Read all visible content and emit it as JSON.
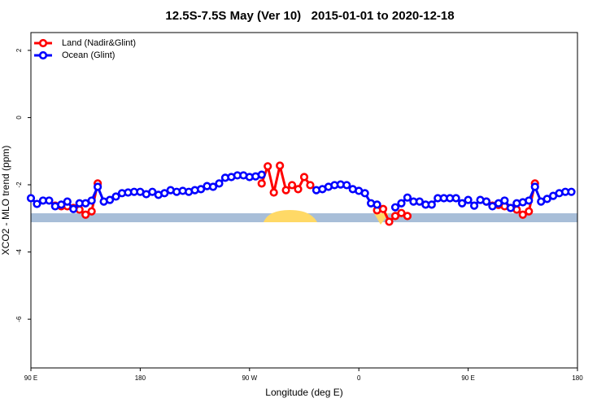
{
  "chart_data": {
    "type": "line",
    "title": "12.5S-7.5S May (Ver 10)   2015-01-01 to 2020-12-18",
    "x_label": "Longitude (deg E)",
    "y_label": "XCO2 - MLO trend (ppm)",
    "x": [
      90,
      95,
      100,
      105,
      110,
      115,
      120,
      125,
      130,
      135,
      140,
      145,
      150,
      155,
      160,
      165,
      170,
      175,
      180,
      185,
      190,
      195,
      200,
      205,
      210,
      215,
      220,
      225,
      230,
      235,
      240,
      245,
      250,
      255,
      260,
      265,
      270,
      275,
      280,
      285,
      290,
      295,
      300,
      305,
      310,
      315,
      320,
      325,
      330,
      335,
      340,
      345,
      350,
      355,
      360,
      365,
      370,
      375,
      380,
      385,
      390,
      395,
      400,
      405,
      410,
      415,
      420,
      425,
      430,
      435,
      440,
      445,
      450,
      455,
      460,
      465,
      470,
      475,
      480,
      485,
      490,
      495,
      500,
      505,
      510,
      515,
      520,
      525,
      530,
      535,
      540
    ],
    "series": [
      {
        "name": "Land (Nadir&Glint)",
        "color": "#ff0000",
        "values": [
          null,
          null,
          null,
          null,
          -2.62,
          -2.64,
          -2.64,
          -2.69,
          -2.74,
          -2.89,
          -2.79,
          -1.96,
          null,
          null,
          null,
          null,
          null,
          null,
          null,
          null,
          null,
          null,
          null,
          null,
          null,
          null,
          null,
          null,
          null,
          null,
          null,
          null,
          null,
          null,
          null,
          null,
          null,
          null,
          -1.96,
          -1.45,
          -2.23,
          -1.43,
          -2.16,
          -2.01,
          -2.13,
          -1.77,
          -2.01,
          null,
          null,
          null,
          null,
          null,
          null,
          null,
          null,
          null,
          null,
          -2.76,
          -2.72,
          -3.1,
          -2.93,
          -2.84,
          -2.93,
          null,
          null,
          null,
          null,
          null,
          null,
          null,
          null,
          null,
          null,
          null,
          null,
          -2.5,
          -2.62,
          -2.6,
          -2.64,
          -2.69,
          -2.74,
          -2.89,
          -2.79,
          -1.96,
          null,
          null,
          null,
          null,
          null,
          null,
          null
        ]
      },
      {
        "name": "Ocean (Glint)",
        "color": "#0000ff",
        "values": [
          -2.4,
          -2.57,
          -2.47,
          -2.47,
          -2.64,
          -2.59,
          -2.5,
          -2.72,
          -2.55,
          -2.55,
          -2.47,
          -2.06,
          -2.5,
          -2.45,
          -2.35,
          -2.25,
          -2.23,
          -2.21,
          -2.21,
          -2.28,
          -2.21,
          -2.3,
          -2.25,
          -2.16,
          -2.21,
          -2.18,
          -2.21,
          -2.16,
          -2.13,
          -2.04,
          -2.06,
          -1.96,
          -1.79,
          -1.77,
          -1.72,
          -1.72,
          -1.77,
          -1.75,
          -1.7,
          null,
          null,
          null,
          null,
          null,
          null,
          null,
          null,
          -2.16,
          -2.13,
          -2.06,
          -2.01,
          -1.99,
          -2.01,
          -2.13,
          -2.18,
          -2.25,
          -2.55,
          -2.59,
          null,
          null,
          -2.67,
          -2.55,
          -2.38,
          -2.5,
          -2.5,
          -2.59,
          -2.59,
          -2.4,
          -2.4,
          -2.4,
          -2.4,
          -2.55,
          -2.45,
          -2.62,
          -2.45,
          -2.5,
          -2.64,
          -2.55,
          -2.47,
          -2.69,
          -2.55,
          -2.52,
          -2.47,
          -2.06,
          -2.5,
          -2.42,
          -2.33,
          -2.25,
          -2.21,
          -2.21,
          null
        ]
      }
    ],
    "xlim": [
      90,
      540
    ],
    "xticks": [
      {
        "value": 90,
        "label": "90 E"
      },
      180,
      {
        "value": 270,
        "label": "90 W"
      },
      {
        "value": 360,
        "label": "0"
      },
      {
        "value": 450,
        "label": "90 E"
      },
      {
        "value": 540,
        "label": "180"
      }
    ],
    "ylim": [
      -7.45,
      2.53
    ],
    "yticks": [
      2,
      0,
      -2,
      -4,
      -6
    ],
    "legend": "top-left"
  }
}
